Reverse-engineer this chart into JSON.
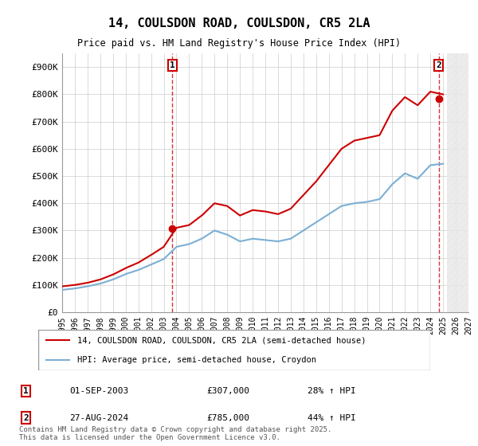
{
  "title": "14, COULSDON ROAD, COULSDON, CR5 2LA",
  "subtitle": "Price paid vs. HM Land Registry's House Price Index (HPI)",
  "legend_line1": "14, COULSDON ROAD, COULSDON, CR5 2LA (semi-detached house)",
  "legend_line2": "HPI: Average price, semi-detached house, Croydon",
  "annotation1_label": "1",
  "annotation1_date": "01-SEP-2003",
  "annotation1_price": "£307,000",
  "annotation1_hpi": "28% ↑ HPI",
  "annotation2_label": "2",
  "annotation2_date": "27-AUG-2024",
  "annotation2_price": "£785,000",
  "annotation2_hpi": "44% ↑ HPI",
  "footer": "Contains HM Land Registry data © Crown copyright and database right 2025.\nThis data is licensed under the Open Government Licence v3.0.",
  "line_color_red": "#cc0000",
  "line_color_blue": "#7bafd4",
  "background_color": "#ffffff",
  "grid_color": "#cccccc",
  "ylim": [
    0,
    950000
  ],
  "yticks": [
    0,
    100000,
    200000,
    300000,
    400000,
    500000,
    600000,
    700000,
    800000,
    900000
  ],
  "ytick_labels": [
    "£0",
    "£100K",
    "£200K",
    "£300K",
    "£400K",
    "£500K",
    "£600K",
    "£700K",
    "£800K",
    "£900K"
  ],
  "x_start_year": 1995,
  "x_end_year": 2027,
  "sale1_year": 2003.67,
  "sale1_price": 307000,
  "sale2_year": 2024.65,
  "sale2_price": 785000,
  "hpi_years": [
    1995,
    1996,
    1997,
    1998,
    1999,
    2000,
    2001,
    2002,
    2003,
    2004,
    2005,
    2006,
    2007,
    2008,
    2009,
    2010,
    2011,
    2012,
    2013,
    2014,
    2015,
    2016,
    2017,
    2018,
    2019,
    2020,
    2021,
    2022,
    2023,
    2024,
    2025
  ],
  "hpi_values": [
    82000,
    87000,
    95000,
    105000,
    120000,
    140000,
    155000,
    175000,
    195000,
    240000,
    250000,
    270000,
    300000,
    285000,
    260000,
    270000,
    265000,
    260000,
    270000,
    300000,
    330000,
    360000,
    390000,
    400000,
    405000,
    415000,
    470000,
    510000,
    490000,
    540000,
    545000
  ],
  "price_years": [
    1995,
    1996,
    1997,
    1998,
    1999,
    2000,
    2001,
    2002,
    2003,
    2004,
    2005,
    2006,
    2007,
    2008,
    2009,
    2010,
    2011,
    2012,
    2013,
    2014,
    2015,
    2016,
    2017,
    2018,
    2019,
    2020,
    2021,
    2022,
    2023,
    2024,
    2025
  ],
  "price_values": [
    95000,
    100000,
    108000,
    120000,
    138000,
    162000,
    182000,
    210000,
    240000,
    310000,
    320000,
    355000,
    400000,
    390000,
    355000,
    375000,
    370000,
    360000,
    380000,
    430000,
    480000,
    540000,
    600000,
    630000,
    640000,
    650000,
    740000,
    790000,
    760000,
    810000,
    800000
  ]
}
